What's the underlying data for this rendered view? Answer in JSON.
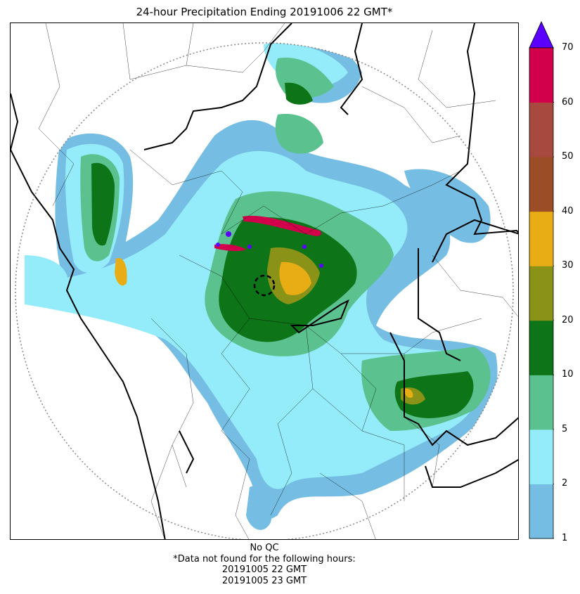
{
  "title": "24-hour Precipitation Ending 20191006 22 GMT*",
  "colorbar": {
    "ticks": [
      "1",
      "2",
      "5",
      "10",
      "20",
      "30",
      "40",
      "50",
      "60",
      "70"
    ],
    "colors": [
      "#75bde2",
      "#94ecfa",
      "#5bc28f",
      "#0d7418",
      "#8a9318",
      "#e8ad14",
      "#9b4d26",
      "#a8493f",
      "#d2004a"
    ],
    "extend_color": "#5b00ff"
  },
  "footer": {
    "qc": "No QC",
    "note": "*Data not found for the following hours:",
    "missing_hours": [
      "20191005 22 GMT",
      "20191005 23 GMT"
    ]
  }
}
